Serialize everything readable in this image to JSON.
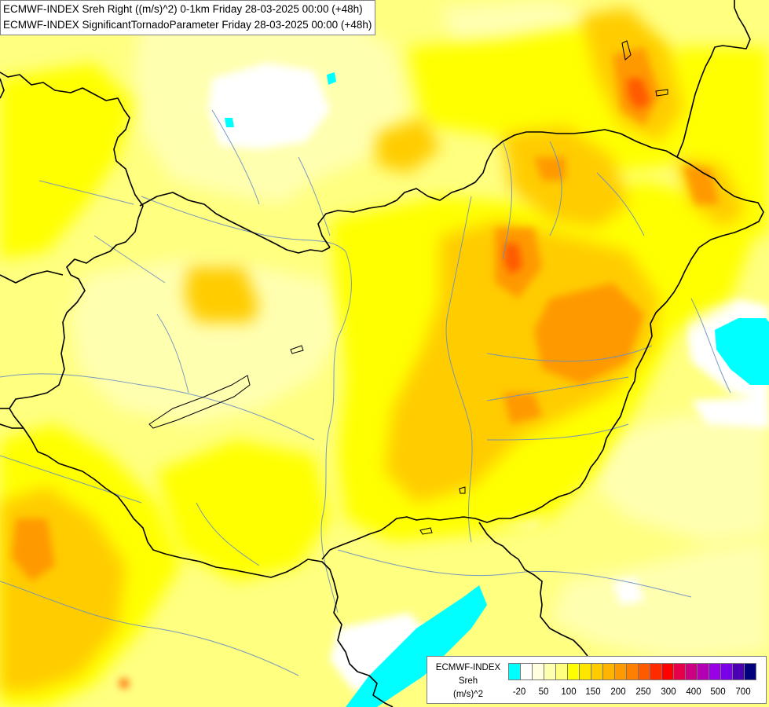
{
  "title": {
    "line1": "ECMWF-INDEX Sreh Right ((m/s)^2) 0-1km Friday 28-03-2025 00:00 (+48h)",
    "line2": "ECMWF-INDEX SignificantTornadoParameter Friday 28-03-2025 00:00 (+48h)"
  },
  "legend": {
    "title_line1": "ECMWF-INDEX",
    "title_line2": "Sreh",
    "title_line3": "(m/s)^2",
    "colors": [
      "#00ffff",
      "#ffffff",
      "#ffffe0",
      "#ffffb0",
      "#ffff80",
      "#ffff00",
      "#ffe600",
      "#ffcc00",
      "#ffb400",
      "#ff9900",
      "#ff7f00",
      "#ff5a00",
      "#ff2a00",
      "#ff0000",
      "#e6004c",
      "#cc0080",
      "#b300b3",
      "#9900e6",
      "#7a00e6",
      "#4b00b4",
      "#00007d"
    ],
    "ticks": [
      "-20",
      "50",
      "100",
      "150",
      "200",
      "250",
      "300",
      "400",
      "500",
      "700"
    ]
  },
  "palette": {
    "background": "#ffff80",
    "border_color": "#000000",
    "river_color": "#6a8fc0"
  }
}
